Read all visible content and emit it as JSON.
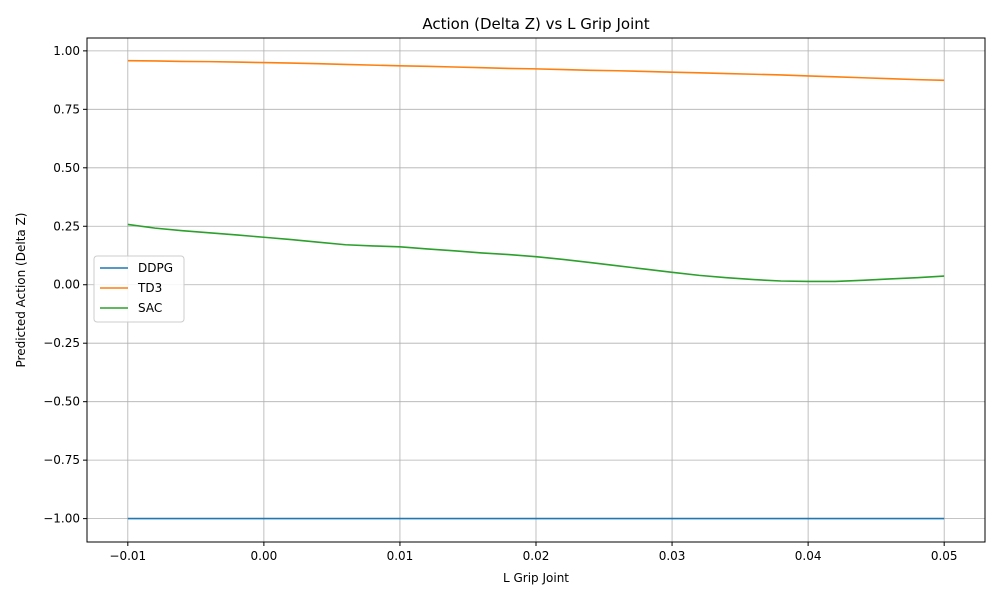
{
  "chart_data": {
    "type": "line",
    "title": "Action (Delta Z) vs L Grip Joint",
    "xlabel": "L Grip Joint",
    "ylabel": "Predicted Action (Delta Z)",
    "xlim": [
      -0.013,
      0.053
    ],
    "ylim": [
      -1.1,
      1.055
    ],
    "xticks": [
      -0.01,
      0.0,
      0.01,
      0.02,
      0.03,
      0.04,
      0.05
    ],
    "xtick_labels": [
      "−0.01",
      "0.00",
      "0.01",
      "0.02",
      "0.03",
      "0.04",
      "0.05"
    ],
    "yticks": [
      -1.0,
      -0.75,
      -0.5,
      -0.25,
      0.0,
      0.25,
      0.5,
      0.75,
      1.0
    ],
    "ytick_labels": [
      "−1.00",
      "−0.75",
      "−0.50",
      "−0.25",
      "0.00",
      "0.25",
      "0.50",
      "0.75",
      "1.00"
    ],
    "grid": true,
    "legend_position": "center-left",
    "x": [
      -0.01,
      -0.008,
      -0.006,
      -0.004,
      -0.002,
      0.0,
      0.002,
      0.004,
      0.006,
      0.008,
      0.01,
      0.012,
      0.014,
      0.016,
      0.018,
      0.02,
      0.022,
      0.024,
      0.026,
      0.028,
      0.03,
      0.032,
      0.034,
      0.036,
      0.038,
      0.04,
      0.042,
      0.044,
      0.046,
      0.048,
      0.05
    ],
    "series": [
      {
        "name": "DDPG",
        "color": "#1f77b4",
        "values": [
          -1.0,
          -1.0,
          -1.0,
          -1.0,
          -1.0,
          -1.0,
          -1.0,
          -1.0,
          -1.0,
          -1.0,
          -1.0,
          -1.0,
          -1.0,
          -1.0,
          -1.0,
          -1.0,
          -1.0,
          -1.0,
          -1.0,
          -1.0,
          -1.0,
          -1.0,
          -1.0,
          -1.0,
          -1.0,
          -1.0,
          -1.0,
          -1.0,
          -1.0,
          -1.0,
          -1.0
        ]
      },
      {
        "name": "TD3",
        "color": "#ff7f0e",
        "values": [
          0.958,
          0.957,
          0.955,
          0.954,
          0.952,
          0.95,
          0.948,
          0.945,
          0.942,
          0.939,
          0.936,
          0.934,
          0.931,
          0.928,
          0.925,
          0.923,
          0.92,
          0.917,
          0.915,
          0.912,
          0.909,
          0.906,
          0.903,
          0.9,
          0.897,
          0.893,
          0.889,
          0.885,
          0.881,
          0.877,
          0.874
        ]
      },
      {
        "name": "SAC",
        "color": "#2ca02c",
        "values": [
          0.258,
          0.242,
          0.231,
          0.222,
          0.213,
          0.203,
          0.193,
          0.182,
          0.171,
          0.166,
          0.162,
          0.153,
          0.145,
          0.136,
          0.129,
          0.12,
          0.108,
          0.095,
          0.081,
          0.067,
          0.053,
          0.04,
          0.03,
          0.022,
          0.016,
          0.014,
          0.014,
          0.019,
          0.025,
          0.03,
          0.037
        ]
      }
    ]
  }
}
